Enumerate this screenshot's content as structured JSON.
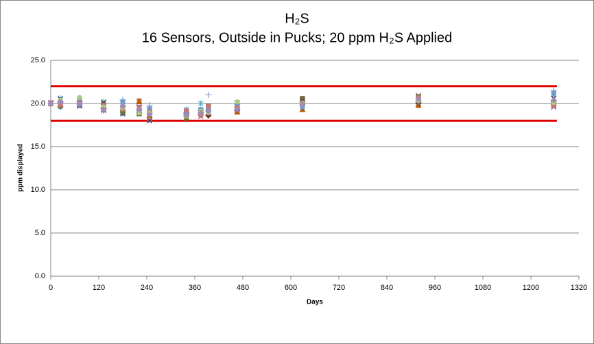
{
  "chart_data": {
    "type": "scatter",
    "title": "H₂S",
    "subtitle": "16 Sensors, Outside in Pucks; 20 ppm H₂S Applied",
    "x_label": "Days",
    "y_label": "ppm displayed",
    "xlim": [
      0,
      1320
    ],
    "xticks": [
      0,
      120,
      240,
      360,
      480,
      600,
      720,
      840,
      960,
      1080,
      1200,
      1320
    ],
    "ylim": [
      0,
      25
    ],
    "yticks": [
      {
        "value": 0,
        "label": "0.0"
      },
      {
        "value": 5,
        "label": "5.0"
      },
      {
        "value": 10,
        "label": "10.0"
      },
      {
        "value": 15,
        "label": "15.0"
      },
      {
        "value": 20,
        "label": "20.0"
      },
      {
        "value": 25,
        "label": "25.0"
      }
    ],
    "grid": true,
    "x": [
      0,
      24,
      72,
      132,
      180,
      221,
      247,
      339,
      375,
      394,
      466,
      629,
      919,
      1257
    ],
    "limit_lines": [
      {
        "color": "#e00000",
        "x": [
          0,
          1265
        ],
        "values": [
          22,
          22
        ]
      },
      {
        "color": "#e00000",
        "x": [
          0,
          1265
        ],
        "values": [
          18,
          18
        ]
      }
    ],
    "series": [
      {
        "color": "#4f81bd",
        "marker": "diamond",
        "values": [
          20.0,
          19.6,
          19.9,
          19.4,
          19.0,
          18.9,
          18.8,
          18.6,
          18.9,
          18.7,
          19.3,
          19.8,
          20.0,
          20.4
        ]
      },
      {
        "color": "#c0504d",
        "marker": "square",
        "values": [
          20.0,
          19.8,
          20.1,
          19.5,
          19.1,
          20.3,
          19.1,
          18.7,
          19.0,
          19.5,
          19.6,
          20.6,
          20.2,
          20.1
        ]
      },
      {
        "color": "#9bbb59",
        "marker": "triangle",
        "values": [
          20.0,
          20.3,
          20.5,
          19.8,
          19.3,
          19.4,
          18.6,
          19.0,
          19.2,
          18.8,
          19.8,
          20.2,
          20.5,
          20.3
        ]
      },
      {
        "color": "#8064a2",
        "marker": "x",
        "values": [
          20.1,
          20.0,
          19.7,
          19.3,
          18.8,
          18.8,
          18.9,
          18.9,
          18.5,
          19.7,
          19.2,
          20.5,
          20.9,
          19.6
        ]
      },
      {
        "color": "#4bacc6",
        "marker": "star",
        "values": [
          20.0,
          20.6,
          20.4,
          20.2,
          19.6,
          19.1,
          18.2,
          19.3,
          20.0,
          19.3,
          20.1,
          20.1,
          20.6,
          21.0
        ]
      },
      {
        "color": "#f79646",
        "marker": "circle",
        "values": [
          19.9,
          19.9,
          20.6,
          19.6,
          19.2,
          20.2,
          18.5,
          18.5,
          19.1,
          18.7,
          19.5,
          20.0,
          19.7,
          20.0
        ]
      },
      {
        "color": "#8fa6c8",
        "marker": "plus",
        "values": [
          20.0,
          20.2,
          20.0,
          20.0,
          20.4,
          19.3,
          19.8,
          18.8,
          18.9,
          21.0,
          19.9,
          19.8,
          20.3,
          21.5
        ]
      },
      {
        "color": "#2c4d75",
        "marker": "star",
        "values": [
          20.0,
          19.8,
          19.8,
          19.2,
          18.9,
          19.5,
          18.7,
          19.1,
          18.8,
          19.6,
          19.4,
          20.4,
          20.0,
          19.8
        ]
      },
      {
        "color": "#772c2a",
        "marker": "diamond",
        "values": [
          20.0,
          20.1,
          20.2,
          19.4,
          19.7,
          18.9,
          19.0,
          18.9,
          19.2,
          18.6,
          19.2,
          20.2,
          20.1,
          20.2
        ]
      },
      {
        "color": "#5f7530",
        "marker": "square",
        "values": [
          20.0,
          19.7,
          19.9,
          19.9,
          19.0,
          18.8,
          19.1,
          18.3,
          18.8,
          19.5,
          19.6,
          20.5,
          20.8,
          19.9
        ]
      },
      {
        "color": "#4d3b62",
        "marker": "x",
        "values": [
          20.0,
          20.5,
          19.8,
          20.1,
          19.5,
          19.6,
          18.0,
          18.8,
          19.2,
          19.0,
          20.0,
          20.3,
          20.2,
          20.6
        ]
      },
      {
        "color": "#b65708",
        "marker": "triangle",
        "values": [
          20.0,
          19.9,
          20.5,
          19.7,
          19.8,
          20.2,
          18.6,
          18.7,
          18.9,
          19.4,
          19.0,
          19.3,
          19.8,
          20.0
        ]
      },
      {
        "color": "#729aca",
        "marker": "square",
        "values": [
          20.0,
          20.0,
          20.3,
          19.5,
          20.2,
          19.0,
          19.4,
          18.9,
          19.3,
          19.2,
          19.7,
          19.6,
          20.4,
          21.2
        ]
      },
      {
        "color": "#cd7371",
        "marker": "circle",
        "values": [
          20.1,
          19.8,
          20.0,
          19.8,
          19.3,
          19.6,
          19.0,
          19.2,
          18.6,
          19.7,
          19.5,
          20.1,
          20.7,
          19.7
        ]
      },
      {
        "color": "#afc97a",
        "marker": "circle",
        "values": [
          20.0,
          20.4,
          20.7,
          19.6,
          19.5,
          18.9,
          18.9,
          18.5,
          19.1,
          18.9,
          20.2,
          20.0,
          20.3,
          20.1
        ]
      },
      {
        "color": "#a18bb8",
        "marker": "diamond",
        "values": [
          20.0,
          20.2,
          19.9,
          19.3,
          19.7,
          19.3,
          18.7,
          18.6,
          18.9,
          19.1,
          19.3,
          19.9,
          20.5,
          20.4
        ]
      }
    ]
  }
}
